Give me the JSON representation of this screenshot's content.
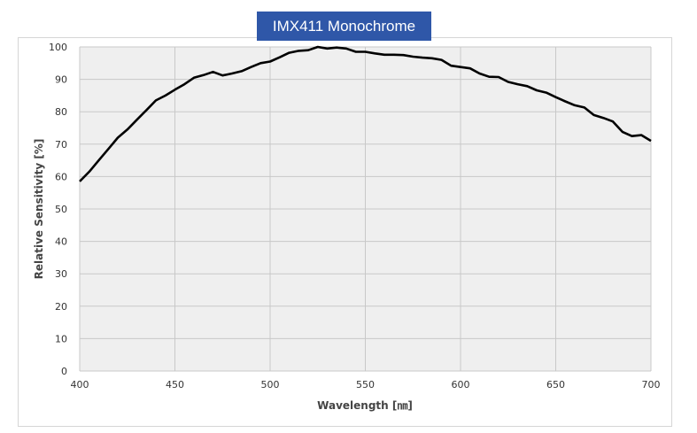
{
  "chart_data": {
    "type": "line",
    "title": "IMX411 Monochrome",
    "xlabel": "Wavelength [㎚]",
    "ylabel": "Relative Sensitivity [%]",
    "xlim": [
      400,
      700
    ],
    "ylim": [
      0,
      100
    ],
    "x_ticks": [
      400,
      450,
      500,
      550,
      600,
      650,
      700
    ],
    "y_ticks": [
      0,
      10,
      20,
      30,
      40,
      50,
      60,
      70,
      80,
      90,
      100
    ],
    "grid": true,
    "legend": "none",
    "colors": {
      "line": "#000000",
      "plot_bg": "#efefef",
      "grid": "#c8c8c8",
      "title_bg": "#2f57a8"
    },
    "series": [
      {
        "x": [
          400,
          405,
          410,
          415,
          420,
          425,
          430,
          435,
          440,
          445,
          450,
          455,
          460,
          465,
          470,
          475,
          480,
          485,
          490,
          495,
          500,
          505,
          510,
          515,
          520,
          525,
          530,
          535,
          540,
          545,
          550,
          555,
          560,
          565,
          570,
          575,
          580,
          585,
          590,
          595,
          600,
          605,
          610,
          615,
          620,
          625,
          630,
          635,
          640,
          645,
          650,
          655,
          660,
          665,
          670,
          675,
          680,
          685,
          690,
          695,
          700
        ],
        "y": [
          58.5,
          61.5,
          65.0,
          68.5,
          72.0,
          74.5,
          77.5,
          80.5,
          83.5,
          85.0,
          86.8,
          88.5,
          90.5,
          91.3,
          92.3,
          91.2,
          91.8,
          92.5,
          93.8,
          95.0,
          95.5,
          96.8,
          98.2,
          98.8,
          99.0,
          100.0,
          99.5,
          99.8,
          99.5,
          98.5,
          98.5,
          98.0,
          97.6,
          97.6,
          97.5,
          97.0,
          96.7,
          96.5,
          96.0,
          94.2,
          93.8,
          93.4,
          91.8,
          90.8,
          90.7,
          89.2,
          88.5,
          87.9,
          86.6,
          85.9,
          84.5,
          83.2,
          82.0,
          81.3,
          79.0,
          78.1,
          77.0,
          73.8,
          72.5,
          72.8,
          71.0
        ]
      }
    ]
  }
}
